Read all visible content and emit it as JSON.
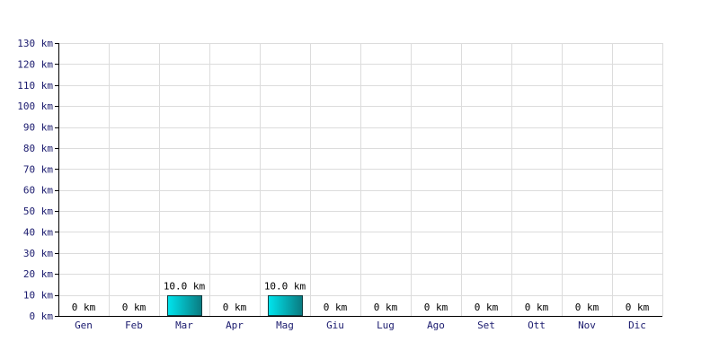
{
  "colors": {
    "grid": "#dcdcdc",
    "axis": "#000000",
    "tick_text": "#1a1a6e",
    "bar_left": "#00e5ee",
    "bar_right": "#0a7a80",
    "bar_stroke": "#0d3b3e"
  },
  "chart_data": {
    "type": "bar",
    "categories": [
      "Gen",
      "Feb",
      "Mar",
      "Apr",
      "Mag",
      "Giu",
      "Lug",
      "Ago",
      "Set",
      "Ott",
      "Nov",
      "Dic"
    ],
    "values": [
      0,
      0,
      10,
      0,
      10,
      0,
      0,
      0,
      0,
      0,
      0,
      0
    ],
    "data_labels": [
      "0 km",
      "0 km",
      "10.0 km",
      "0 km",
      "10.0 km",
      "0 km",
      "0 km",
      "0 km",
      "0 km",
      "0 km",
      "0 km",
      "0 km"
    ],
    "ylim": [
      0,
      130
    ],
    "yticks": [
      0,
      10,
      20,
      30,
      40,
      50,
      60,
      70,
      80,
      90,
      100,
      110,
      120,
      130
    ],
    "ytick_labels": [
      "0 km",
      "10 km",
      "20 km",
      "30 km",
      "40 km",
      "50 km",
      "60 km",
      "70 km",
      "80 km",
      "90 km",
      "100 km",
      "110 km",
      "120 km",
      "130 km"
    ],
    "grid": true,
    "legend": "none",
    "title": "",
    "xlabel": "",
    "ylabel": ""
  }
}
